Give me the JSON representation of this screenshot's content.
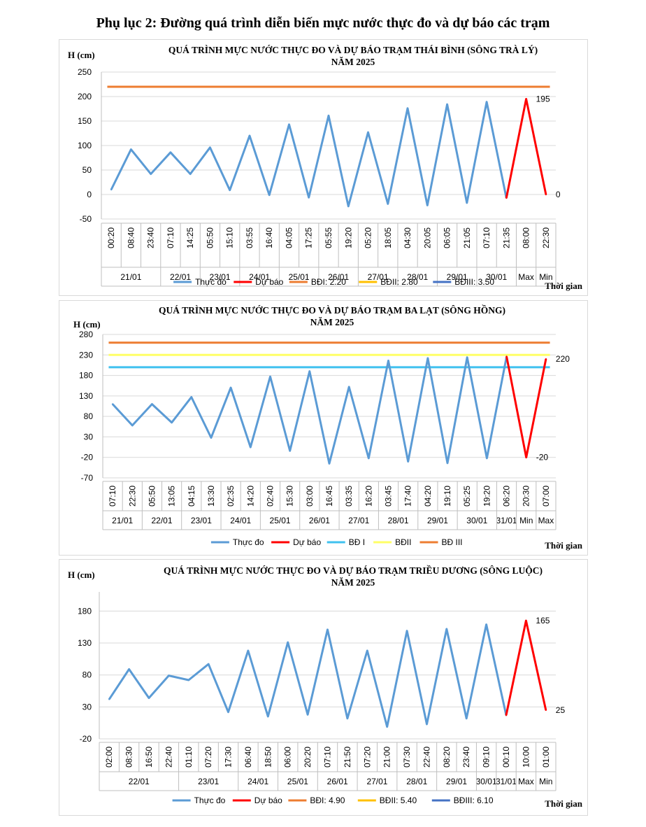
{
  "page_title": "Phụ lục 2: Đường quá trình diễn biến mực nước thực đo và dự báo các trạm",
  "chart_data": [
    {
      "type": "line",
      "title": "QUÁ TRÌNH MỰC NƯỚC THỰC ĐO VÀ DỰ BÁO TRẠM THÁI BÌNH (SÔNG TRÀ LÝ)",
      "subtitle": "NĂM 2025",
      "ylabel": "H (cm)",
      "xlabel": "Thời gian",
      "ylim": [
        -50,
        250
      ],
      "yticks": [
        250,
        200,
        150,
        100,
        50,
        0,
        -50
      ],
      "x_times": [
        "00:20",
        "08:40",
        "23:40",
        "07:10",
        "14:25",
        "05:50",
        "15:10",
        "03:55",
        "16:40",
        "04:05",
        "17:25",
        "05:55",
        "19:20",
        "05:20",
        "18:05",
        "04:30",
        "20:05",
        "06:05",
        "21:05",
        "07:10",
        "21:35",
        "08:00",
        "22:30"
      ],
      "date_groups": [
        {
          "label": "21/01",
          "span": 3
        },
        {
          "label": "22/01",
          "span": 2
        },
        {
          "label": "23/01",
          "span": 2
        },
        {
          "label": "24/01",
          "span": 2
        },
        {
          "label": "25/01",
          "span": 2
        },
        {
          "label": "26/01",
          "span": 2
        },
        {
          "label": "27/01",
          "span": 2
        },
        {
          "label": "28/01",
          "span": 2
        },
        {
          "label": "29/01",
          "span": 2
        },
        {
          "label": "30/01",
          "span": 2
        },
        {
          "label": "Max",
          "span": 1
        },
        {
          "label": "Min",
          "span": 1
        }
      ],
      "series": [
        {
          "name": "Thực đo",
          "color": "#5b9bd5",
          "kind": "line",
          "start": 0,
          "values": [
            10,
            92,
            42,
            86,
            42,
            96,
            9,
            120,
            -1,
            143,
            -6,
            161,
            -24,
            127,
            -19,
            176,
            -22,
            184,
            -17,
            189,
            -7
          ]
        },
        {
          "name": "Dự báo",
          "color": "#ff0000",
          "kind": "line",
          "start": 20,
          "values": [
            -7,
            195,
            0
          ]
        }
      ],
      "hlines": [
        {
          "name": "BĐI: 2.20",
          "color": "#ed7d31",
          "value": 220,
          "draw": true
        },
        {
          "name": "BĐII: 2.80",
          "color": "#ffc000",
          "value": null,
          "draw": false
        },
        {
          "name": "BĐIII: 3.50",
          "color": "#4472c4",
          "value": null,
          "draw": false
        }
      ],
      "data_labels": [
        {
          "index": 21,
          "text": "195",
          "pos": "right"
        },
        {
          "index": 22,
          "text": "0",
          "pos": "right"
        }
      ],
      "legend_position": "bottom"
    },
    {
      "type": "line",
      "title": "QUÁ TRÌNH MỰC NƯỚC THỰC ĐO VÀ DỰ BÁO TRẠM BA LẠT (SÔNG HỒNG)",
      "subtitle": "NĂM 2025",
      "ylabel": "H (cm)",
      "xlabel": "Thời gian",
      "ylim": [
        -70,
        280
      ],
      "yticks": [
        280,
        230,
        180,
        130,
        80,
        30,
        -20,
        -70
      ],
      "x_times": [
        "07:10",
        "22:30",
        "05:50",
        "13:05",
        "04:15",
        "13:30",
        "02:35",
        "14:20",
        "02:40",
        "15:30",
        "03:00",
        "16:45",
        "03:35",
        "16:20",
        "03:45",
        "17:40",
        "04:20",
        "19:10",
        "05:25",
        "19:20",
        "06:20",
        "20:30",
        "07:00"
      ],
      "date_groups": [
        {
          "label": "21/01",
          "span": 2
        },
        {
          "label": "22/01",
          "span": 2
        },
        {
          "label": "23/01",
          "span": 2
        },
        {
          "label": "24/01",
          "span": 2
        },
        {
          "label": "25/01",
          "span": 2
        },
        {
          "label": "26/01",
          "span": 2
        },
        {
          "label": "27/01",
          "span": 2
        },
        {
          "label": "28/01",
          "span": 2
        },
        {
          "label": "29/01",
          "span": 2
        },
        {
          "label": "30/01",
          "span": 2
        },
        {
          "label": "31/01",
          "span": 1
        },
        {
          "label": "Min",
          "span": 1
        },
        {
          "label": "Max",
          "span": 1
        }
      ],
      "series": [
        {
          "name": "Thực đo",
          "color": "#5b9bd5",
          "kind": "line",
          "start": 0,
          "values": [
            110,
            58,
            110,
            65,
            127,
            28,
            150,
            5,
            177,
            -4,
            190,
            -35,
            152,
            -22,
            216,
            -30,
            222,
            -34,
            224,
            -22,
            226
          ]
        },
        {
          "name": "Dự báo",
          "color": "#ff0000",
          "kind": "line",
          "start": 20,
          "values": [
            226,
            -20,
            220
          ]
        }
      ],
      "hlines": [
        {
          "name": "BĐ I",
          "color": "#3fc1ef",
          "value": 200,
          "draw": true
        },
        {
          "name": "BĐII",
          "color": "#ffff66",
          "value": 230,
          "draw": true
        },
        {
          "name": "BĐ III",
          "color": "#ed7d31",
          "value": 260,
          "draw": true
        }
      ],
      "data_labels": [
        {
          "index": 21,
          "text": "-20",
          "pos": "right"
        },
        {
          "index": 22,
          "text": "220",
          "pos": "right"
        }
      ],
      "legend_position": "bottom"
    },
    {
      "type": "line",
      "title": "QUÁ TRÌNH MỰC NƯỚC THỰC ĐO VÀ DỰ BÁO TRẠM TRIỀU DƯƠNG (SÔNG LUỘC)",
      "subtitle": "NĂM 2025",
      "ylabel": "H (cm)",
      "xlabel": "Thời gian",
      "ylim": [
        -20,
        210
      ],
      "yticks": [
        180,
        130,
        80,
        30,
        -20
      ],
      "x_times": [
        "02:00",
        "08:30",
        "16:50",
        "22:40",
        "01:10",
        "07:20",
        "17:30",
        "06:40",
        "18:50",
        "06:00",
        "20:20",
        "07:10",
        "21:50",
        "07:20",
        "21:00",
        "07:30",
        "22:40",
        "08:20",
        "23:40",
        "09:10",
        "00:10",
        "10:00",
        "01:00"
      ],
      "date_groups": [
        {
          "label": "22/01",
          "span": 4
        },
        {
          "label": "23/01",
          "span": 3
        },
        {
          "label": "24/01",
          "span": 2
        },
        {
          "label": "25/01",
          "span": 2
        },
        {
          "label": "26/01",
          "span": 2
        },
        {
          "label": "27/01",
          "span": 2
        },
        {
          "label": "28/01",
          "span": 2
        },
        {
          "label": "29/01",
          "span": 2
        },
        {
          "label": "30/01",
          "span": 1
        },
        {
          "label": "31/01",
          "span": 1
        },
        {
          "label": "Max",
          "span": 1
        },
        {
          "label": "Min",
          "span": 1
        }
      ],
      "series": [
        {
          "name": "Thực đo",
          "color": "#5b9bd5",
          "kind": "line",
          "start": 0,
          "values": [
            42,
            89,
            44,
            79,
            72,
            97,
            22,
            118,
            15,
            131,
            18,
            151,
            12,
            118,
            -1,
            149,
            3,
            152,
            12,
            159,
            17
          ]
        },
        {
          "name": "Dự báo",
          "color": "#ff0000",
          "kind": "line",
          "start": 20,
          "values": [
            17,
            165,
            25
          ]
        }
      ],
      "hlines": [
        {
          "name": "BĐI: 4.90",
          "color": "#ed7d31",
          "value": null,
          "draw": false
        },
        {
          "name": "BĐII: 5.40",
          "color": "#ffc000",
          "value": null,
          "draw": false
        },
        {
          "name": "BĐIII: 6.10",
          "color": "#4472c4",
          "value": null,
          "draw": false
        }
      ],
      "data_labels": [
        {
          "index": 21,
          "text": "165",
          "pos": "right"
        },
        {
          "index": 22,
          "text": "25",
          "pos": "right"
        }
      ],
      "legend_position": "bottom"
    }
  ]
}
